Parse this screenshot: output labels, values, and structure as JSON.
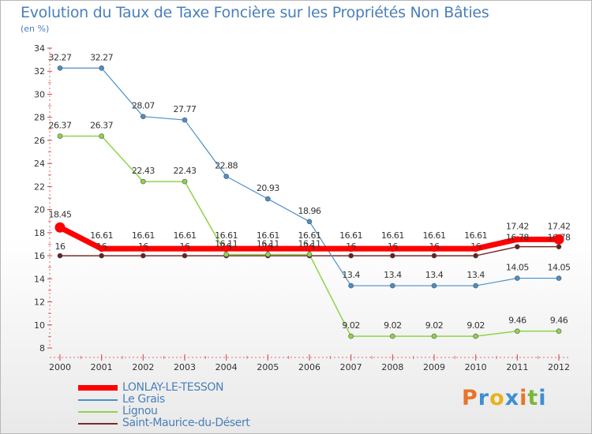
{
  "header": {
    "title": "Evolution du Taux de Taxe Foncière sur les Propriétés Non Bâties",
    "unit": "(en %)"
  },
  "logo": {
    "text": "Proxiti",
    "colors": [
      "#e8742a",
      "#3d8fd1",
      "#e8b21e",
      "#3d8fd1",
      "#e8742a",
      "#7ab83a",
      "#3d8fd1"
    ]
  },
  "chart_data": {
    "type": "line",
    "title": "Evolution du Taux de Taxe Foncière sur les Propriétés Non Bâties",
    "ylabel": "(en %)",
    "x": [
      "2000",
      "2001",
      "2002",
      "2003",
      "2004",
      "2005",
      "2006",
      "2007",
      "2008",
      "2009",
      "2010",
      "2011",
      "2012"
    ],
    "ylim": [
      8,
      34
    ],
    "yticks": [
      8,
      10,
      12,
      14,
      16,
      18,
      20,
      22,
      24,
      26,
      28,
      30,
      32,
      34
    ],
    "legend_position": "bottom-left",
    "series": [
      {
        "name": "LONLAY-LE-TESSON",
        "color": "#ff0000",
        "values": [
          18.45,
          16.61,
          16.61,
          16.61,
          16.61,
          16.61,
          16.61,
          16.61,
          16.61,
          16.61,
          16.61,
          17.42,
          17.42
        ],
        "labels": [
          "18.45",
          "16.61",
          "16.61",
          "16.61",
          "16.61",
          "16.61",
          "16.61",
          "16.61",
          "16.61",
          "16.61",
          "16.61",
          "17.42",
          "17.42"
        ]
      },
      {
        "name": "Le Grais",
        "color": "#4a8fc9",
        "values": [
          32.27,
          32.27,
          28.07,
          27.77,
          22.88,
          20.93,
          18.96,
          13.4,
          13.4,
          13.4,
          13.4,
          14.05,
          14.05
        ],
        "labels": [
          "32.27",
          "32.27",
          "28.07",
          "27.77",
          "22.88",
          "20.93",
          "18.96",
          "13.4",
          "13.4",
          "13.4",
          "13.4",
          "14.05",
          "14.05"
        ]
      },
      {
        "name": "Lignou",
        "color": "#8fd34a",
        "values": [
          26.37,
          26.37,
          22.43,
          22.43,
          16.11,
          16.11,
          16.11,
          9.02,
          9.02,
          9.02,
          9.02,
          9.46,
          9.46
        ],
        "labels": [
          "26.37",
          "26.37",
          "22.43",
          "22.43",
          "16.11",
          "16.11",
          "16.11",
          "9.02",
          "9.02",
          "9.02",
          "9.02",
          "9.46",
          "9.46"
        ]
      },
      {
        "name": "Saint-Maurice-du-Désert",
        "color": "#7a2a2a",
        "values": [
          16,
          16,
          16,
          16,
          16,
          16,
          16,
          16,
          16,
          16,
          16,
          16.78,
          16.78
        ],
        "labels": [
          "16",
          "16",
          "16",
          "16",
          "16",
          "16",
          "16",
          "16",
          "16",
          "16",
          "16",
          "16.78",
          "16.78"
        ]
      }
    ]
  }
}
